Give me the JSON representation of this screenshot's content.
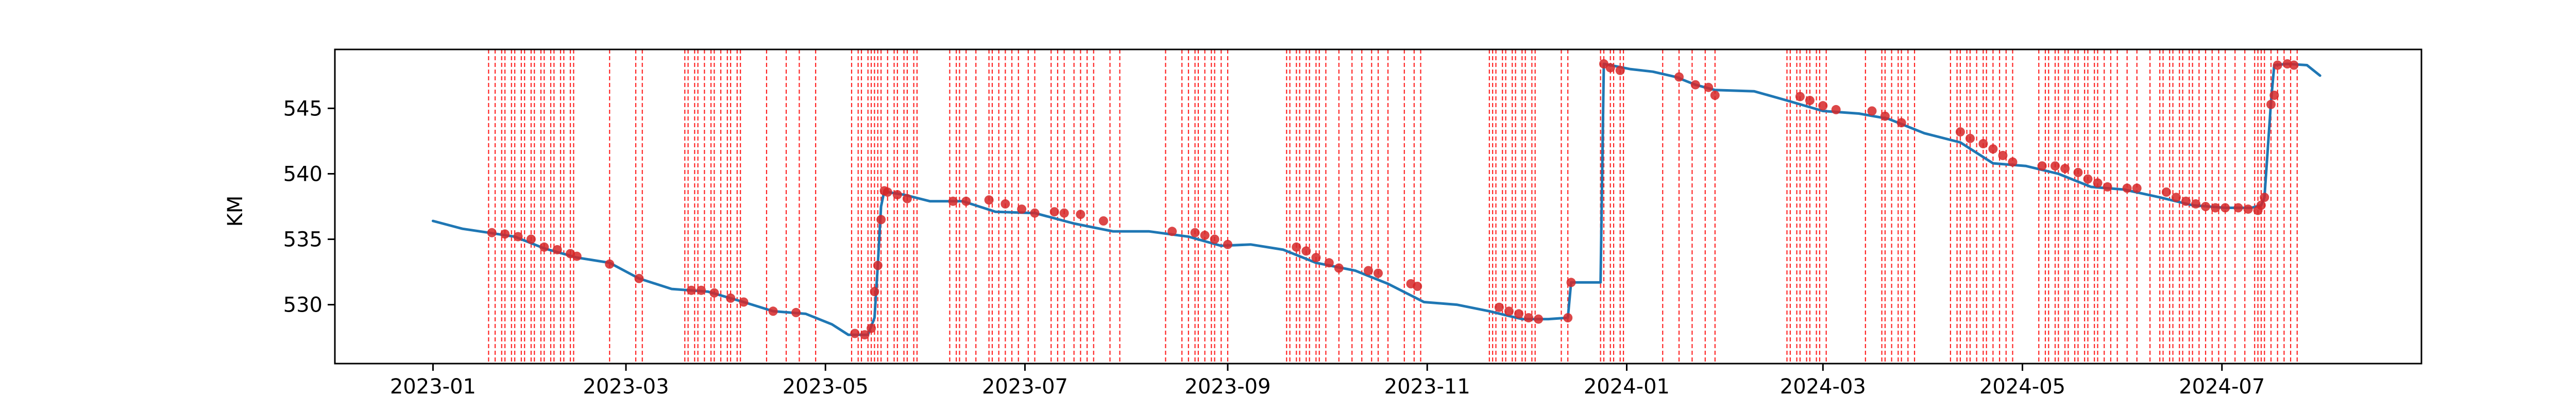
{
  "chart_data": {
    "type": "line",
    "title": "",
    "xlabel": "",
    "ylabel": "KM",
    "xlim": [
      "2022-12-02",
      "2024-08-31"
    ],
    "ylim": [
      525.5,
      549.5
    ],
    "x_ticks": [
      "2023-01-01",
      "2023-03-01",
      "2023-05-01",
      "2023-07-01",
      "2023-09-01",
      "2023-11-01",
      "2024-01-01",
      "2024-03-01",
      "2024-05-01",
      "2024-07-01"
    ],
    "x_tick_labels": [
      "2023-01",
      "2023-03",
      "2023-05",
      "2023-07",
      "2023-09",
      "2023-11",
      "2024-01",
      "2024-03",
      "2024-05",
      "2024-07"
    ],
    "y_ticks": [
      530,
      535,
      540,
      545
    ],
    "y_tick_labels": [
      "530",
      "535",
      "540",
      "545"
    ],
    "grid": false,
    "colors": {
      "line": "#1f77b4",
      "marker": "#d62728",
      "event_line": "#ff0000"
    },
    "series": [
      {
        "kind": "line",
        "x": [
          "2023-01-01",
          "2023-01-10",
          "2023-01-18",
          "2023-01-26",
          "2023-02-04",
          "2023-02-14",
          "2023-02-24",
          "2023-03-05",
          "2023-03-15",
          "2023-03-26",
          "2023-04-06",
          "2023-04-15",
          "2023-04-25",
          "2023-05-03",
          "2023-05-08",
          "2023-05-14",
          "2023-05-16",
          "2023-05-17",
          "2023-05-18",
          "2023-05-19",
          "2023-05-20",
          "2023-05-25",
          "2023-06-02",
          "2023-06-12",
          "2023-06-22",
          "2023-07-04",
          "2023-07-16",
          "2023-07-28",
          "2023-08-08",
          "2023-08-20",
          "2023-08-30",
          "2023-09-08",
          "2023-09-18",
          "2023-09-28",
          "2023-10-10",
          "2023-10-20",
          "2023-10-31",
          "2023-11-10",
          "2023-11-20",
          "2023-11-30",
          "2023-12-08",
          "2023-12-14",
          "2023-12-15",
          "2023-12-16",
          "2023-12-24",
          "2023-12-25",
          "2024-01-02",
          "2024-01-09",
          "2024-01-16",
          "2024-01-22",
          "2024-01-28",
          "2024-02-09",
          "2024-02-19",
          "2024-03-01",
          "2024-03-12",
          "2024-03-21",
          "2024-04-01",
          "2024-04-12",
          "2024-04-22",
          "2024-05-02",
          "2024-05-12",
          "2024-05-22",
          "2024-06-01",
          "2024-06-12",
          "2024-06-22",
          "2024-07-02",
          "2024-07-10",
          "2024-07-13",
          "2024-07-14",
          "2024-07-16",
          "2024-07-17",
          "2024-07-21",
          "2024-07-27",
          "2024-07-31"
        ],
        "y": [
          536.4,
          535.8,
          535.5,
          535.2,
          534.3,
          533.6,
          533.2,
          532.0,
          531.2,
          531.0,
          530.2,
          529.5,
          529.3,
          528.5,
          527.7,
          527.7,
          529.0,
          533.0,
          537.5,
          538.7,
          538.6,
          538.4,
          537.9,
          537.9,
          537.1,
          537.0,
          536.2,
          535.6,
          535.6,
          535.2,
          534.5,
          534.6,
          534.2,
          533.2,
          532.6,
          531.6,
          530.2,
          530.0,
          529.5,
          528.9,
          528.9,
          529.0,
          531.7,
          531.7,
          531.7,
          548.4,
          548.0,
          547.8,
          547.4,
          546.8,
          546.4,
          546.3,
          545.6,
          544.8,
          544.6,
          544.2,
          543.1,
          542.4,
          540.8,
          540.6,
          540.0,
          539.0,
          538.8,
          538.2,
          537.6,
          537.4,
          537.4,
          537.6,
          538.2,
          545.5,
          548.3,
          548.4,
          548.3,
          547.5
        ]
      },
      {
        "kind": "markers",
        "x": [
          "2023-01-19",
          "2023-01-23",
          "2023-01-27",
          "2023-01-31",
          "2023-02-04",
          "2023-02-08",
          "2023-02-12",
          "2023-02-14",
          "2023-02-24",
          "2023-03-05",
          "2023-03-21",
          "2023-03-24",
          "2023-03-28",
          "2023-04-02",
          "2023-04-06",
          "2023-04-15",
          "2023-04-22",
          "2023-05-10",
          "2023-05-13",
          "2023-05-15",
          "2023-05-16",
          "2023-05-17",
          "2023-05-18",
          "2023-05-19",
          "2023-05-20",
          "2023-05-23",
          "2023-05-26",
          "2023-06-09",
          "2023-06-13",
          "2023-06-20",
          "2023-06-25",
          "2023-06-30",
          "2023-07-04",
          "2023-07-10",
          "2023-07-13",
          "2023-07-18",
          "2023-07-25",
          "2023-08-15",
          "2023-08-22",
          "2023-08-25",
          "2023-08-28",
          "2023-09-01",
          "2023-09-22",
          "2023-09-25",
          "2023-09-28",
          "2023-10-02",
          "2023-10-05",
          "2023-10-14",
          "2023-10-17",
          "2023-10-27",
          "2023-10-29",
          "2023-11-23",
          "2023-11-26",
          "2023-11-29",
          "2023-12-02",
          "2023-12-05",
          "2023-12-14",
          "2023-12-15",
          "2023-12-25",
          "2023-12-27",
          "2023-12-30",
          "2024-01-17",
          "2024-01-22",
          "2024-01-26",
          "2024-01-28",
          "2024-02-23",
          "2024-02-26",
          "2024-03-01",
          "2024-03-05",
          "2024-03-16",
          "2024-03-20",
          "2024-03-25",
          "2024-04-12",
          "2024-04-15",
          "2024-04-19",
          "2024-04-22",
          "2024-04-25",
          "2024-04-28",
          "2024-05-07",
          "2024-05-11",
          "2024-05-14",
          "2024-05-18",
          "2024-05-21",
          "2024-05-24",
          "2024-05-27",
          "2024-06-02",
          "2024-06-05",
          "2024-06-14",
          "2024-06-17",
          "2024-06-20",
          "2024-06-23",
          "2024-06-26",
          "2024-06-29",
          "2024-07-02",
          "2024-07-06",
          "2024-07-09",
          "2024-07-12",
          "2024-07-13",
          "2024-07-14",
          "2024-07-16",
          "2024-07-17",
          "2024-07-18",
          "2024-07-21",
          "2024-07-23"
        ],
        "y": [
          535.5,
          535.4,
          535.2,
          535.0,
          534.4,
          534.2,
          533.9,
          533.7,
          533.1,
          532.0,
          531.1,
          531.1,
          530.9,
          530.5,
          530.2,
          529.5,
          529.4,
          527.8,
          527.7,
          528.2,
          531.0,
          533.0,
          536.5,
          538.7,
          538.6,
          538.4,
          538.1,
          537.9,
          537.9,
          538.0,
          537.7,
          537.3,
          537.0,
          537.1,
          537.0,
          536.9,
          536.4,
          535.6,
          535.5,
          535.3,
          535.0,
          534.6,
          534.4,
          534.1,
          533.6,
          533.2,
          532.8,
          532.6,
          532.4,
          531.6,
          531.4,
          529.8,
          529.5,
          529.3,
          529.0,
          528.9,
          529.0,
          531.7,
          548.4,
          548.1,
          547.9,
          547.4,
          546.8,
          546.6,
          546.0,
          545.9,
          545.6,
          545.2,
          544.9,
          544.8,
          544.4,
          543.9,
          543.2,
          542.7,
          542.3,
          541.9,
          541.4,
          540.9,
          540.6,
          540.6,
          540.4,
          540.1,
          539.6,
          539.3,
          539.0,
          538.9,
          538.9,
          538.6,
          538.2,
          537.9,
          537.7,
          537.5,
          537.4,
          537.4,
          537.4,
          537.3,
          537.2,
          537.6,
          538.2,
          545.3,
          546.0,
          548.3,
          548.4,
          548.3
        ]
      },
      {
        "kind": "vertical_event_lines",
        "x": [
          "2023-01-18",
          "2023-01-20",
          "2023-01-22",
          "2023-01-23",
          "2023-01-25",
          "2023-01-26",
          "2023-01-28",
          "2023-01-29",
          "2023-01-31",
          "2023-02-01",
          "2023-02-03",
          "2023-02-04",
          "2023-02-06",
          "2023-02-07",
          "2023-02-09",
          "2023-02-10",
          "2023-02-12",
          "2023-02-13",
          "2023-02-24",
          "2023-03-04",
          "2023-03-06",
          "2023-03-19",
          "2023-03-20",
          "2023-03-22",
          "2023-03-23",
          "2023-03-25",
          "2023-03-27",
          "2023-03-28",
          "2023-03-30",
          "2023-04-01",
          "2023-04-02",
          "2023-04-04",
          "2023-04-05",
          "2023-04-13",
          "2023-04-19",
          "2023-04-23",
          "2023-04-28",
          "2023-05-09",
          "2023-05-11",
          "2023-05-12",
          "2023-05-14",
          "2023-05-15",
          "2023-05-16",
          "2023-05-17",
          "2023-05-18",
          "2023-05-20",
          "2023-05-22",
          "2023-05-23",
          "2023-05-25",
          "2023-05-26",
          "2023-05-28",
          "2023-05-29",
          "2023-06-08",
          "2023-06-10",
          "2023-06-11",
          "2023-06-13",
          "2023-06-16",
          "2023-06-20",
          "2023-06-21",
          "2023-06-23",
          "2023-06-25",
          "2023-06-27",
          "2023-06-29",
          "2023-07-02",
          "2023-07-04",
          "2023-07-09",
          "2023-07-11",
          "2023-07-13",
          "2023-07-16",
          "2023-07-18",
          "2023-07-20",
          "2023-07-22",
          "2023-07-27",
          "2023-07-30",
          "2023-08-13",
          "2023-08-18",
          "2023-08-20",
          "2023-08-22",
          "2023-08-23",
          "2023-08-25",
          "2023-08-27",
          "2023-08-28",
          "2023-08-30",
          "2023-09-01",
          "2023-09-19",
          "2023-09-20",
          "2023-09-22",
          "2023-09-23",
          "2023-09-25",
          "2023-09-26",
          "2023-09-28",
          "2023-09-29",
          "2023-10-01",
          "2023-10-05",
          "2023-10-09",
          "2023-10-12",
          "2023-10-15",
          "2023-10-17",
          "2023-10-20",
          "2023-10-25",
          "2023-10-28",
          "2023-10-30",
          "2023-11-20",
          "2023-11-21",
          "2023-11-22",
          "2023-11-24",
          "2023-11-25",
          "2023-11-27",
          "2023-11-28",
          "2023-11-30",
          "2023-12-01",
          "2023-12-03",
          "2023-12-04",
          "2023-12-12",
          "2023-12-14",
          "2023-12-24",
          "2023-12-25",
          "2023-12-27",
          "2023-12-28",
          "2023-12-30",
          "2023-12-31",
          "2024-01-12",
          "2024-01-17",
          "2024-01-21",
          "2024-01-25",
          "2024-01-28",
          "2024-02-19",
          "2024-02-20",
          "2024-02-22",
          "2024-02-23",
          "2024-02-25",
          "2024-02-26",
          "2024-02-28",
          "2024-02-29",
          "2024-03-02",
          "2024-03-14",
          "2024-03-19",
          "2024-03-20",
          "2024-03-22",
          "2024-03-24",
          "2024-03-25",
          "2024-03-27",
          "2024-03-29",
          "2024-04-09",
          "2024-04-11",
          "2024-04-12",
          "2024-04-14",
          "2024-04-15",
          "2024-04-17",
          "2024-04-19",
          "2024-04-20",
          "2024-04-22",
          "2024-04-24",
          "2024-04-26",
          "2024-04-28",
          "2024-05-06",
          "2024-05-08",
          "2024-05-09",
          "2024-05-11",
          "2024-05-12",
          "2024-05-14",
          "2024-05-15",
          "2024-05-17",
          "2024-05-18",
          "2024-05-20",
          "2024-05-21",
          "2024-05-23",
          "2024-05-24",
          "2024-05-26",
          "2024-05-28",
          "2024-05-30",
          "2024-06-02",
          "2024-06-05",
          "2024-06-09",
          "2024-06-12",
          "2024-06-13",
          "2024-06-15",
          "2024-06-16",
          "2024-06-18",
          "2024-06-19",
          "2024-06-21",
          "2024-06-22",
          "2024-06-24",
          "2024-06-26",
          "2024-06-28",
          "2024-06-30",
          "2024-07-02",
          "2024-07-05",
          "2024-07-08",
          "2024-07-11",
          "2024-07-12",
          "2024-07-13",
          "2024-07-14",
          "2024-07-16",
          "2024-07-18",
          "2024-07-20",
          "2024-07-22",
          "2024-07-24"
        ]
      }
    ]
  }
}
